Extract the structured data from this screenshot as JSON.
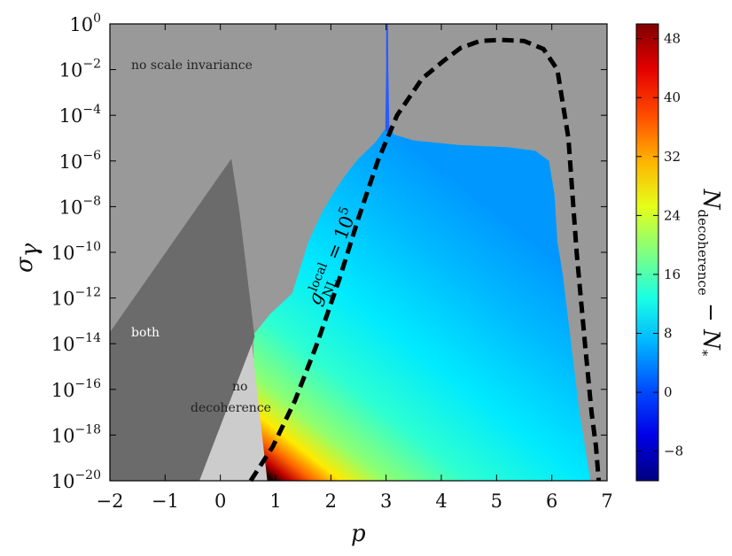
{
  "chart_data": {
    "type": "heatmap",
    "xlabel": "p",
    "ylabel": "σ",
    "ylabel_sub": "γ",
    "xlim": [
      -2,
      7
    ],
    "ylim_exp": [
      -20,
      0
    ],
    "yscale": "log",
    "x_ticks": [
      "−2",
      "−1",
      "0",
      "1",
      "2",
      "3",
      "4",
      "5",
      "6",
      "7"
    ],
    "x_tick_values": [
      -2,
      -1,
      0,
      1,
      2,
      3,
      4,
      5,
      6,
      7
    ],
    "y_tick_exponents": [
      0,
      -2,
      -4,
      -6,
      -8,
      -10,
      -12,
      -14,
      -16,
      -18,
      -20
    ],
    "y_tick_base": "10",
    "y_tick_sup": [
      "0",
      "−2",
      "−4",
      "−6",
      "−8",
      "−10",
      "−12",
      "−14",
      "−16",
      "−18",
      "−20"
    ],
    "colorbar": {
      "label_main": "N",
      "label_sub": "decoherence",
      "label_mid": " − N",
      "label_sub2": "*",
      "range": [
        -12,
        50
      ],
      "tick_values": [
        -8,
        0,
        8,
        16,
        24,
        32,
        40,
        48
      ],
      "tick_labels": [
        "−8",
        "0",
        "8",
        "16",
        "24",
        "32",
        "40",
        "48"
      ],
      "colormap": "jet"
    },
    "regions": {
      "no_scale_invariance": {
        "label": "no scale invariance",
        "color": "#999999"
      },
      "both": {
        "label": "both",
        "color": "#6b6b6b"
      },
      "no_decoherence": {
        "label_line1": "no",
        "label_line2": "decoherence",
        "color": "#cccccc"
      }
    },
    "dashed_curve": {
      "label_g": "g",
      "label_sup": "local",
      "label_sub": "NL",
      "label_eq": " = 10",
      "label_exp": "5",
      "points": [
        [
          0.55,
          -20
        ],
        [
          0.95,
          -18.5
        ],
        [
          1.35,
          -16.5
        ],
        [
          1.75,
          -14
        ],
        [
          2.15,
          -11.2
        ],
        [
          2.5,
          -8.5
        ],
        [
          2.85,
          -6
        ],
        [
          3.2,
          -4
        ],
        [
          3.65,
          -2.4
        ],
        [
          4.05,
          -1.6
        ],
        [
          4.35,
          -1.05
        ],
        [
          4.7,
          -0.75
        ],
        [
          5.1,
          -0.7
        ],
        [
          5.5,
          -0.75
        ],
        [
          5.85,
          -1.1
        ],
        [
          6.1,
          -2
        ],
        [
          6.3,
          -5
        ],
        [
          6.45,
          -10
        ],
        [
          6.6,
          -14
        ],
        [
          6.72,
          -17
        ],
        [
          6.8,
          -18.5
        ],
        [
          6.85,
          -20
        ]
      ]
    }
  }
}
